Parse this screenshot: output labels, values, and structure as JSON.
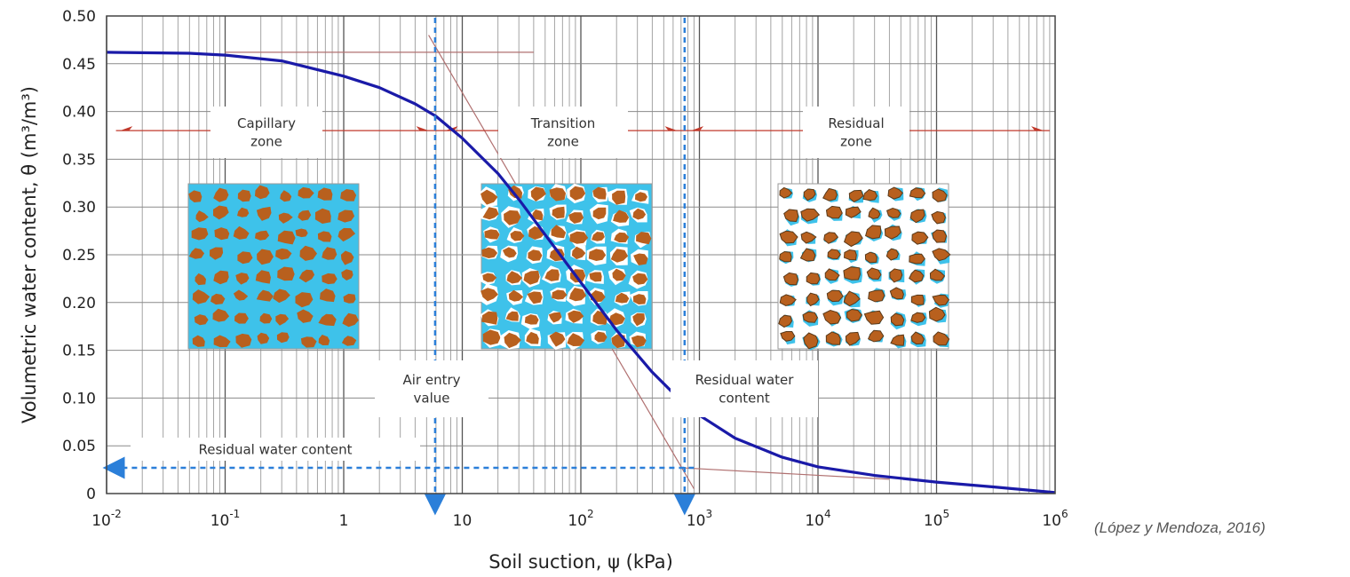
{
  "chart_data": {
    "type": "line",
    "xlabel": "Soil suction, ψ (kPa)",
    "ylabel": "Volumetric water content, θ (m³/m³)",
    "x_scale": "log",
    "xlim": [
      0.01,
      1000000
    ],
    "ylim": [
      0,
      0.5
    ],
    "x_tick_labels": [
      "10-2",
      "10-1",
      "1",
      "10",
      "102",
      "103",
      "104",
      "105",
      "106"
    ],
    "y_tick_labels": [
      "0",
      "0.05",
      "0.10",
      "0.15",
      "0.20",
      "0.25",
      "0.30",
      "0.35",
      "0.40",
      "0.45",
      "0.50"
    ],
    "grid": true,
    "series": [
      {
        "color": "#1a1aa8",
        "x": [
          0.01,
          0.05,
          0.1,
          0.3,
          1,
          2,
          4,
          6,
          10,
          20,
          30,
          50,
          100,
          200,
          400,
          700,
          1000,
          2000,
          5000,
          10000,
          30000,
          100000,
          300000,
          1000000
        ],
        "y": [
          0.462,
          0.461,
          0.459,
          0.453,
          0.437,
          0.425,
          0.408,
          0.395,
          0.372,
          0.335,
          0.308,
          0.271,
          0.221,
          0.171,
          0.127,
          0.097,
          0.082,
          0.058,
          0.038,
          0.028,
          0.019,
          0.012,
          0.007,
          0.001
        ]
      }
    ],
    "zones": [
      {
        "label": "Capillary\nzone"
      },
      {
        "label": "Transition\nzone"
      },
      {
        "label": "Residual\nzone"
      }
    ],
    "annotations": {
      "air_entry_label": "Air entry\nvalue",
      "air_entry_value": 5.9,
      "residual_label_right": "Residual water\ncontent",
      "residual_suction": 750,
      "residual_label_left": "Residual water content",
      "residual_theta": 0.027
    },
    "colors": {
      "curve": "#1a1aa8",
      "marker": "#2b7fd9",
      "zone_arrow": "#c0392b",
      "tangent": "#b07070",
      "grain": "#b8601e",
      "water": "#3ec2ea"
    }
  },
  "source_note": "(López y Mendoza, 2016)"
}
